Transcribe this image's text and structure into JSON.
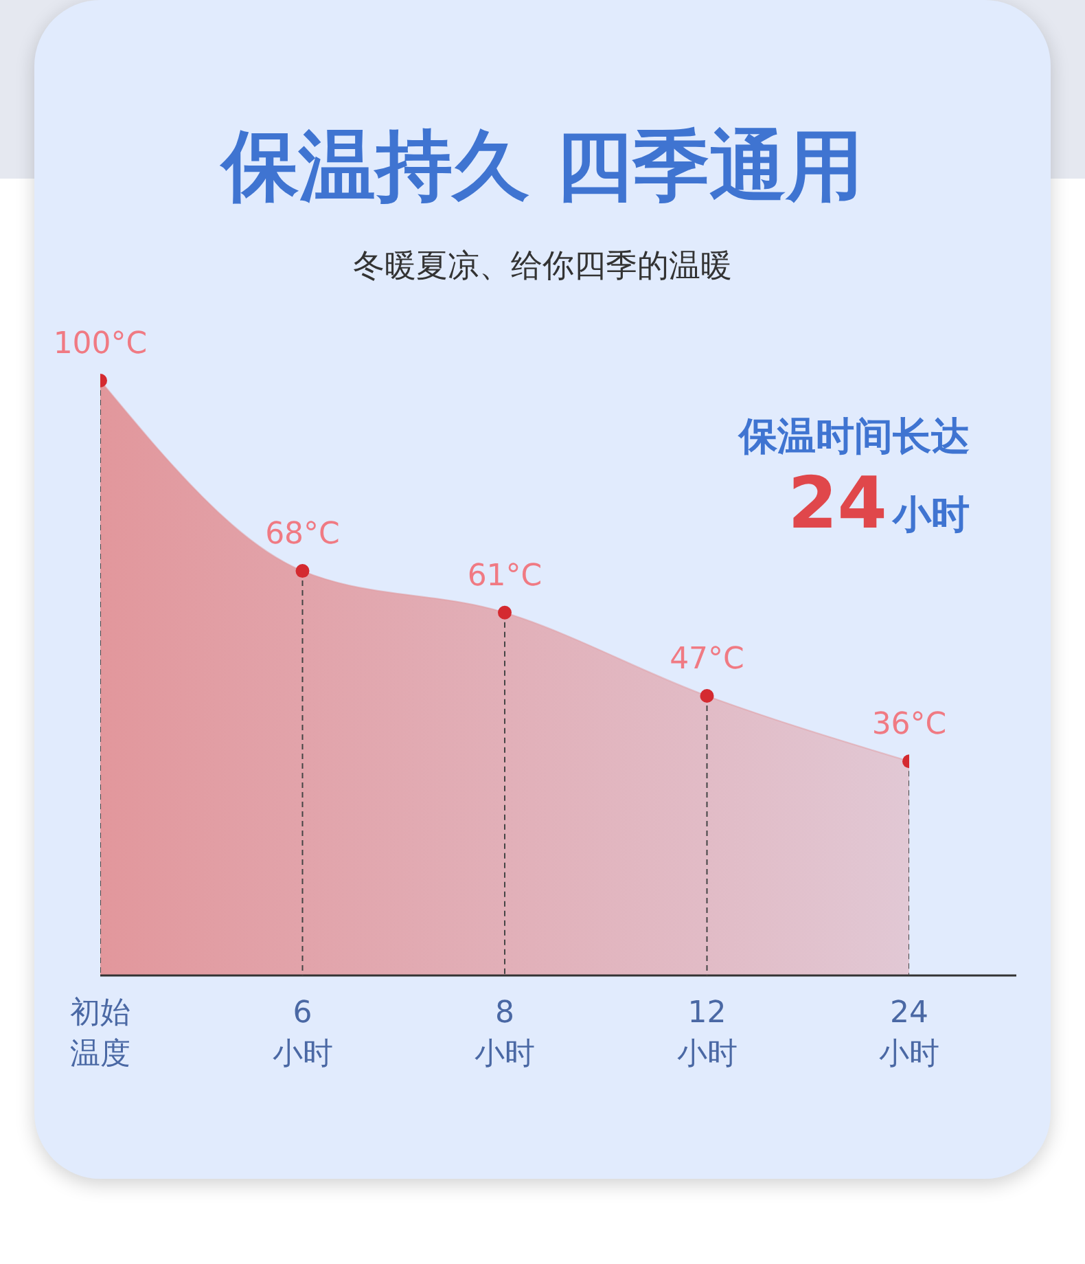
{
  "chart_data": {
    "type": "area",
    "title": "保温持久 四季通用",
    "subtitle": "冬暖夏凉、给你四季的温暖",
    "categories": [
      "初始温度",
      "6小时",
      "8小时",
      "12小时",
      "24小时"
    ],
    "values": [
      100,
      68,
      61,
      47,
      36
    ],
    "value_labels": [
      "100°C",
      "68°C",
      "61°C",
      "47°C",
      "36°C"
    ],
    "color": "#e2979c",
    "colors": [
      "#d42a30",
      "#d42a30",
      "#d42a30",
      "#d42a30",
      "#d42a30"
    ],
    "marker": "circle",
    "annotations": [
      "保温时间长达",
      "24小时"
    ]
  }
}
